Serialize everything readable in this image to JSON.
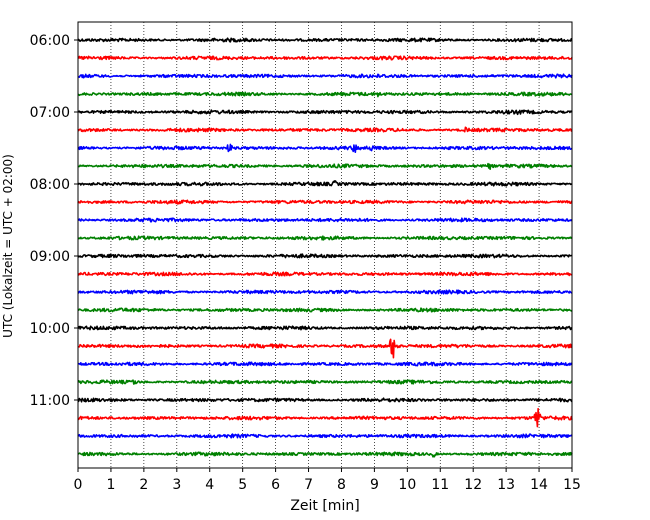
{
  "chart_data": {
    "type": "line",
    "title": "",
    "xlabel": "Zeit  [min]",
    "ylabel": "UTC (Lokalzeit = UTC + 02:00)",
    "xlim": [
      0,
      15
    ],
    "x_ticks": [
      0,
      1,
      2,
      3,
      4,
      5,
      6,
      7,
      8,
      9,
      10,
      11,
      12,
      13,
      14,
      15
    ],
    "x_tick_labels": [
      "0",
      "1",
      "2",
      "3",
      "4",
      "5",
      "6",
      "7",
      "8",
      "9",
      "10",
      "11",
      "12",
      "13",
      "14",
      "15"
    ],
    "y_tick_labels": [
      "06:00",
      "07:00",
      "08:00",
      "09:00",
      "10:00",
      "11:00"
    ],
    "grid": "vertical dotted at each minute",
    "trace_interval_minutes": 15,
    "color_cycle": [
      "#000000",
      "#ff0000",
      "#0000ff",
      "#008000"
    ],
    "traces": [
      {
        "start": "06:00",
        "color": "#000000",
        "events": []
      },
      {
        "start": "06:15",
        "color": "#ff0000",
        "events": []
      },
      {
        "start": "06:30",
        "color": "#0000ff",
        "events": []
      },
      {
        "start": "06:45",
        "color": "#008000",
        "events": [
          {
            "minute": 9.1,
            "amplitude": "small"
          }
        ]
      },
      {
        "start": "07:00",
        "color": "#000000",
        "events": [
          {
            "minute": 13.4,
            "amplitude": "small"
          }
        ]
      },
      {
        "start": "07:15",
        "color": "#ff0000",
        "events": [
          {
            "minute": 11.8,
            "amplitude": "small"
          }
        ]
      },
      {
        "start": "07:30",
        "color": "#0000ff",
        "events": [
          {
            "minute": 4.6,
            "amplitude": "medium"
          },
          {
            "minute": 8.4,
            "amplitude": "medium"
          },
          {
            "minute": 8.9,
            "amplitude": "small"
          }
        ]
      },
      {
        "start": "07:45",
        "color": "#008000",
        "events": [
          {
            "minute": 12.5,
            "amplitude": "small"
          }
        ]
      },
      {
        "start": "08:00",
        "color": "#000000",
        "events": [
          {
            "minute": 7.8,
            "amplitude": "small"
          }
        ]
      },
      {
        "start": "08:15",
        "color": "#ff0000",
        "events": []
      },
      {
        "start": "08:30",
        "color": "#0000ff",
        "events": []
      },
      {
        "start": "08:45",
        "color": "#008000",
        "events": []
      },
      {
        "start": "09:00",
        "color": "#000000",
        "events": []
      },
      {
        "start": "09:15",
        "color": "#ff0000",
        "events": []
      },
      {
        "start": "09:30",
        "color": "#0000ff",
        "events": []
      },
      {
        "start": "09:45",
        "color": "#008000",
        "events": []
      },
      {
        "start": "10:00",
        "color": "#000000",
        "events": []
      },
      {
        "start": "10:15",
        "color": "#ff0000",
        "events": [
          {
            "minute": 9.55,
            "amplitude": "large"
          },
          {
            "minute": 9.75,
            "amplitude": "small"
          }
        ]
      },
      {
        "start": "10:30",
        "color": "#0000ff",
        "events": []
      },
      {
        "start": "10:45",
        "color": "#008000",
        "events": [
          {
            "minute": 1.7,
            "amplitude": "small"
          }
        ]
      },
      {
        "start": "11:00",
        "color": "#000000",
        "events": []
      },
      {
        "start": "11:15",
        "color": "#ff0000",
        "events": [
          {
            "minute": 13.95,
            "amplitude": "large"
          }
        ]
      },
      {
        "start": "11:30",
        "color": "#0000ff",
        "events": []
      },
      {
        "start": "11:45",
        "color": "#008000",
        "events": [
          {
            "minute": 10.8,
            "amplitude": "small"
          }
        ]
      }
    ]
  }
}
